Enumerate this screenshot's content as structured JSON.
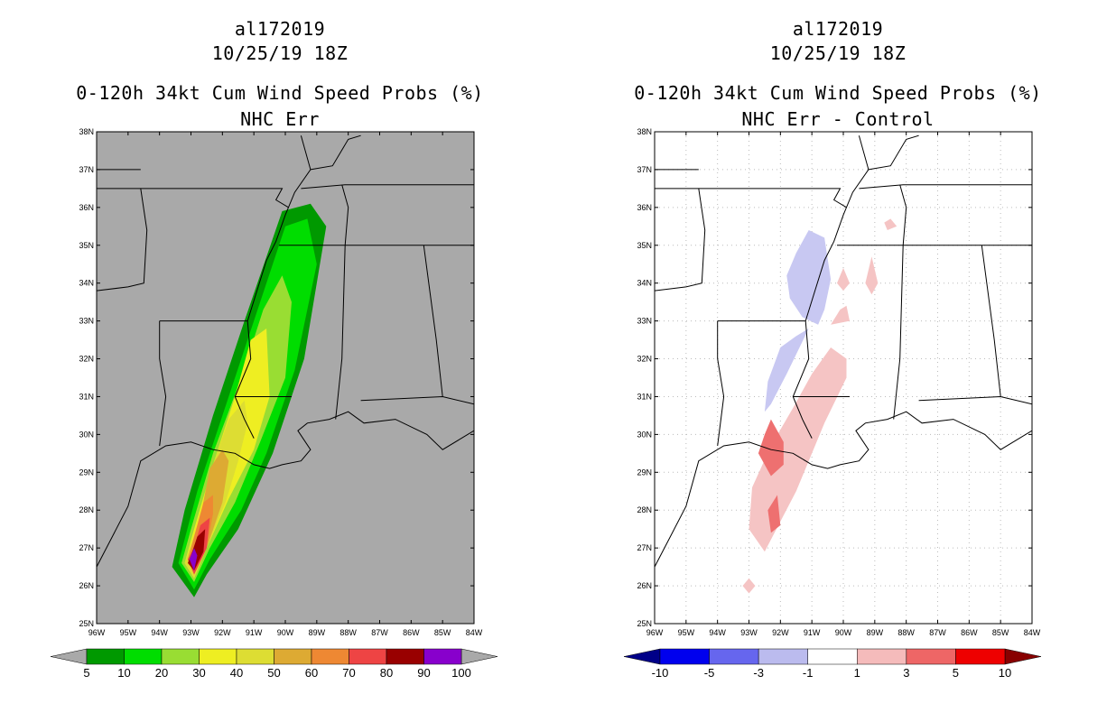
{
  "chart_data": [
    {
      "type": "heatmap",
      "storm_id": "al172019",
      "datetime": "10/25/19 18Z",
      "title": "0-120h 34kt Cum Wind Speed Probs (%)",
      "subtitle": "NHC Err",
      "xlim": [
        -96,
        -84
      ],
      "ylim": [
        25,
        38
      ],
      "x_tick_labels": [
        "96W",
        "95W",
        "94W",
        "93W",
        "92W",
        "91W",
        "90W",
        "89W",
        "88W",
        "87W",
        "86W",
        "85W",
        "84W"
      ],
      "y_tick_labels": [
        "25N",
        "26N",
        "27N",
        "28N",
        "29N",
        "30N",
        "31N",
        "32N",
        "33N",
        "34N",
        "35N",
        "36N",
        "37N",
        "38N"
      ],
      "background": "#a9a9a9",
      "colorbar": {
        "labels": [
          "5",
          "10",
          "20",
          "30",
          "40",
          "50",
          "60",
          "70",
          "80",
          "90",
          "100"
        ],
        "colors": [
          "#009900",
          "#00dd00",
          "#99dd33",
          "#eeee22",
          "#dddd33",
          "#ddaa33",
          "#ee8833",
          "#ee4444",
          "#990000",
          "#8800cc"
        ],
        "arrow_color": "#a9a9a9"
      },
      "contours": [
        {
          "level": 5,
          "color": "#009900",
          "points": [
            [
              -92.9,
              25.7
            ],
            [
              -92.5,
              26.3
            ],
            [
              -91.5,
              27.5
            ],
            [
              -90.4,
              29.5
            ],
            [
              -89.4,
              32
            ],
            [
              -88.7,
              35.5
            ],
            [
              -89.2,
              36.1
            ],
            [
              -90.1,
              35.9
            ],
            [
              -91.3,
              33
            ],
            [
              -92.3,
              30.5
            ],
            [
              -93.2,
              28
            ],
            [
              -93.6,
              26.5
            ]
          ]
        },
        {
          "level": 10,
          "color": "#00dd00",
          "points": [
            [
              -92.9,
              25.9
            ],
            [
              -92.4,
              26.7
            ],
            [
              -91.4,
              28
            ],
            [
              -90.6,
              29.5
            ],
            [
              -89.7,
              31.7
            ],
            [
              -89.0,
              34.5
            ],
            [
              -89.3,
              35.7
            ],
            [
              -90.0,
              35.5
            ],
            [
              -90.8,
              33.5
            ],
            [
              -91.8,
              31
            ],
            [
              -92.8,
              28.5
            ],
            [
              -93.4,
              26.6
            ]
          ]
        },
        {
          "level": 20,
          "color": "#99dd33",
          "points": [
            [
              -92.9,
              26.1
            ],
            [
              -92.4,
              27
            ],
            [
              -91.6,
              28.2
            ],
            [
              -90.8,
              29.8
            ],
            [
              -90.0,
              31.5
            ],
            [
              -89.8,
              33.5
            ],
            [
              -90.1,
              34.2
            ],
            [
              -90.7,
              33.3
            ],
            [
              -91.4,
              31.5
            ],
            [
              -92.3,
              29.5
            ],
            [
              -93.0,
              27.5
            ],
            [
              -93.3,
              26.6
            ]
          ]
        },
        {
          "level": 30,
          "color": "#eeee22",
          "points": [
            [
              -92.9,
              26.2
            ],
            [
              -92.5,
              27
            ],
            [
              -91.8,
              28.3
            ],
            [
              -91.0,
              29.6
            ],
            [
              -90.5,
              31
            ],
            [
              -90.6,
              32.8
            ],
            [
              -91.1,
              32.5
            ],
            [
              -91.6,
              31
            ],
            [
              -92.3,
              29.2
            ],
            [
              -92.9,
              27.5
            ],
            [
              -93.2,
              26.6
            ]
          ]
        },
        {
          "level": 40,
          "color": "#dddd33",
          "points": [
            [
              -92.9,
              26.2
            ],
            [
              -92.5,
              27
            ],
            [
              -91.9,
              28.2
            ],
            [
              -91.5,
              29.3
            ],
            [
              -91.2,
              30.3
            ],
            [
              -91.3,
              30.9
            ],
            [
              -91.8,
              30.4
            ],
            [
              -92.3,
              29.2
            ],
            [
              -92.8,
              27.6
            ],
            [
              -93.2,
              26.6
            ]
          ]
        },
        {
          "level": 50,
          "color": "#ddaa33",
          "points": [
            [
              -92.9,
              26.3
            ],
            [
              -92.5,
              27
            ],
            [
              -92.0,
              28.2
            ],
            [
              -91.8,
              29.3
            ],
            [
              -92.0,
              29.6
            ],
            [
              -92.4,
              29.1
            ],
            [
              -92.7,
              27.8
            ],
            [
              -93.1,
              26.7
            ]
          ]
        },
        {
          "level": 60,
          "color": "#ee8833",
          "points": [
            [
              -92.9,
              26.3
            ],
            [
              -92.5,
              27
            ],
            [
              -92.3,
              27.9
            ],
            [
              -92.3,
              28.4
            ],
            [
              -92.6,
              28.2
            ],
            [
              -92.9,
              27.3
            ],
            [
              -93.1,
              26.7
            ]
          ]
        },
        {
          "level": 70,
          "color": "#ee4444",
          "points": [
            [
              -92.9,
              26.3
            ],
            [
              -92.5,
              27
            ],
            [
              -92.4,
              27.8
            ],
            [
              -92.7,
              27.6
            ],
            [
              -92.9,
              27.0
            ],
            [
              -93.1,
              26.7
            ]
          ]
        },
        {
          "level": 80,
          "color": "#990000",
          "points": [
            [
              -92.9,
              26.4
            ],
            [
              -92.6,
              26.9
            ],
            [
              -92.55,
              27.5
            ],
            [
              -92.8,
              27.3
            ],
            [
              -93.0,
              26.8
            ],
            [
              -93.1,
              26.6
            ]
          ]
        },
        {
          "level": 90,
          "color": "#8800cc",
          "points": [
            [
              -92.9,
              26.4
            ],
            [
              -92.8,
              26.8
            ],
            [
              -92.9,
              27.0
            ],
            [
              -93.05,
              26.7
            ]
          ]
        }
      ]
    },
    {
      "type": "heatmap",
      "storm_id": "al172019",
      "datetime": "10/25/19 18Z",
      "title": "0-120h 34kt Cum Wind Speed Probs (%)",
      "subtitle": "NHC Err - Control",
      "xlim": [
        -96,
        -84
      ],
      "ylim": [
        25,
        38
      ],
      "x_tick_labels": [
        "96W",
        "95W",
        "94W",
        "93W",
        "92W",
        "91W",
        "90W",
        "89W",
        "88W",
        "87W",
        "86W",
        "85W",
        "84W"
      ],
      "y_tick_labels": [
        "25N",
        "26N",
        "27N",
        "28N",
        "29N",
        "30N",
        "31N",
        "32N",
        "33N",
        "34N",
        "35N",
        "36N",
        "37N",
        "38N"
      ],
      "background": "#ffffff",
      "grid": true,
      "colorbar": {
        "labels": [
          "-10",
          "-5",
          "-3",
          "-1",
          "1",
          "3",
          "5",
          "10"
        ],
        "colors": [
          "#0000ee",
          "#6666ee",
          "#bbbbee",
          "#ffffff",
          "#f5bbbb",
          "#ee6666",
          "#ee0000"
        ],
        "left_arrow_color": "#000088",
        "right_arrow_color": "#880000"
      },
      "contours": [
        {
          "level": -1,
          "color": "#c8c8f2",
          "points": [
            [
              -91.1,
              35.4
            ],
            [
              -90.6,
              35.2
            ],
            [
              -90.4,
              34.1
            ],
            [
              -90.6,
              33.3
            ],
            [
              -90.8,
              32.9
            ],
            [
              -91.3,
              33.1
            ],
            [
              -91.7,
              33.6
            ],
            [
              -91.8,
              34.2
            ],
            [
              -91.5,
              34.8
            ]
          ]
        },
        {
          "level": -1,
          "color": "#c8c8f2",
          "points": [
            [
              -91.1,
              32.8
            ],
            [
              -91.8,
              31.6
            ],
            [
              -92.3,
              30.8
            ],
            [
              -92.5,
              30.6
            ],
            [
              -92.4,
              31.4
            ],
            [
              -92.0,
              32.3
            ],
            [
              -91.5,
              32.6
            ]
          ]
        },
        {
          "level": 1,
          "color": "#f5c4c4",
          "points": [
            [
              -92.5,
              26.9
            ],
            [
              -91.5,
              28.5
            ],
            [
              -90.6,
              30.3
            ],
            [
              -89.9,
              31.5
            ],
            [
              -89.9,
              32
            ],
            [
              -90.4,
              32.3
            ],
            [
              -91.0,
              31.6
            ],
            [
              -91.6,
              30.7
            ],
            [
              -92.3,
              29.7
            ],
            [
              -92.9,
              28.6
            ],
            [
              -93.0,
              27.5
            ]
          ]
        },
        {
          "level": 1,
          "color": "#f5c4c4",
          "points": [
            [
              -89.9,
              33.4
            ],
            [
              -89.8,
              33.0
            ],
            [
              -90.4,
              32.9
            ],
            [
              -90.1,
              33.3
            ]
          ]
        },
        {
          "level": 1,
          "color": "#f5c4c4",
          "points": [
            [
              -90.0,
              34.4
            ],
            [
              -89.8,
              34.0
            ],
            [
              -90.0,
              33.8
            ],
            [
              -90.2,
              34.0
            ]
          ]
        },
        {
          "level": 1,
          "color": "#f5c4c4",
          "points": [
            [
              -89.1,
              34.7
            ],
            [
              -88.9,
              34.0
            ],
            [
              -89.1,
              33.7
            ],
            [
              -89.3,
              34.0
            ]
          ]
        },
        {
          "level": 1,
          "color": "#f5c4c4",
          "points": [
            [
              -88.5,
              35.7
            ],
            [
              -88.3,
              35.5
            ],
            [
              -88.6,
              35.4
            ],
            [
              -88.7,
              35.6
            ]
          ]
        },
        {
          "level": 1,
          "color": "#f5c4c4",
          "points": [
            [
              -93.0,
              26.2
            ],
            [
              -92.8,
              26.0
            ],
            [
              -93.0,
              25.8
            ],
            [
              -93.2,
              26.0
            ]
          ]
        },
        {
          "level": 3,
          "color": "#ee7070",
          "points": [
            [
              -92.3,
              30.4
            ],
            [
              -91.9,
              29.8
            ],
            [
              -91.9,
              29.2
            ],
            [
              -92.3,
              28.9
            ],
            [
              -92.7,
              29.5
            ],
            [
              -92.5,
              30.0
            ]
          ]
        },
        {
          "level": 3,
          "color": "#ee7070",
          "points": [
            [
              -92.1,
              28.4
            ],
            [
              -92.0,
              27.6
            ],
            [
              -92.3,
              27.4
            ],
            [
              -92.4,
              28.0
            ]
          ]
        }
      ]
    }
  ]
}
